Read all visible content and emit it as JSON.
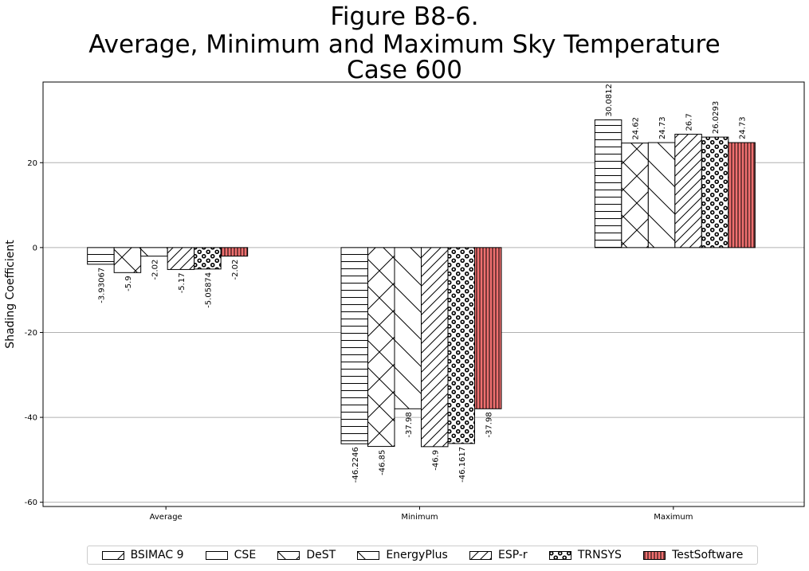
{
  "title_lines": [
    "Figure B8-6.",
    "Average, Minimum and Maximum Sky Temperature",
    "Case 600"
  ],
  "chart_data": {
    "type": "bar",
    "title": "Figure B8-6. Average, Minimum and Maximum Sky Temperature Case 600",
    "xlabel": "",
    "ylabel": "Shading Coefficient",
    "ylim": [
      -61,
      39
    ],
    "yticks": [
      -60,
      -40,
      -20,
      0,
      20
    ],
    "grid": "horizontal",
    "legend_position": "bottom",
    "categories": [
      "Average",
      "Minimum",
      "Maximum"
    ],
    "series": [
      {
        "name": "BSIMAC 9",
        "values": [
          -3.93067,
          -46.2246,
          30.0812
        ],
        "labels": [
          "-3.93067",
          "-46.2246",
          "30.0812"
        ],
        "pattern": "horizontal-lines",
        "color": "#ffffff"
      },
      {
        "name": "CSE",
        "values": [
          -5.9,
          -46.85,
          24.62
        ],
        "labels": [
          "-5.9",
          "-46.85",
          "24.62"
        ],
        "pattern": "crosshatch",
        "color": "#ffffff"
      },
      {
        "name": "DeST",
        "values": [
          -2.02,
          -37.98,
          24.73
        ],
        "labels": [
          "-2.02",
          "-37.98",
          "24.73"
        ],
        "pattern": "backslash",
        "color": "#ffffff"
      },
      {
        "name": "EnergyPlus",
        "values": [
          -5.17,
          -46.9,
          26.7
        ],
        "labels": [
          "-5.17",
          "-46.9",
          "26.7"
        ],
        "pattern": "forward-slash",
        "color": "#ffffff"
      },
      {
        "name": "ESP-r",
        "values": [
          -5.05874,
          -46.1617,
          26.0293
        ],
        "labels": [
          "-5.05874",
          "-46.1617",
          "26.0293"
        ],
        "pattern": "circles",
        "color": "#ffffff"
      },
      {
        "name": "TestSoftware",
        "values": [
          -2.02,
          -37.98,
          24.73
        ],
        "labels": [
          "-2.02",
          "-37.98",
          "24.73"
        ],
        "pattern": "vertical-lines",
        "color": "#f07070"
      }
    ],
    "legend": [
      {
        "name": "BSIMAC 9",
        "pattern": "forward-slash-legend"
      },
      {
        "name": "CSE",
        "pattern": "plain"
      },
      {
        "name": "DeST",
        "pattern": "crosshatch"
      },
      {
        "name": "EnergyPlus",
        "pattern": "backslash"
      },
      {
        "name": "ESP-r",
        "pattern": "forward-slash"
      },
      {
        "name": "TRNSYS",
        "pattern": "circles"
      },
      {
        "name": "TestSoftware",
        "pattern": "vertical-lines"
      }
    ]
  }
}
